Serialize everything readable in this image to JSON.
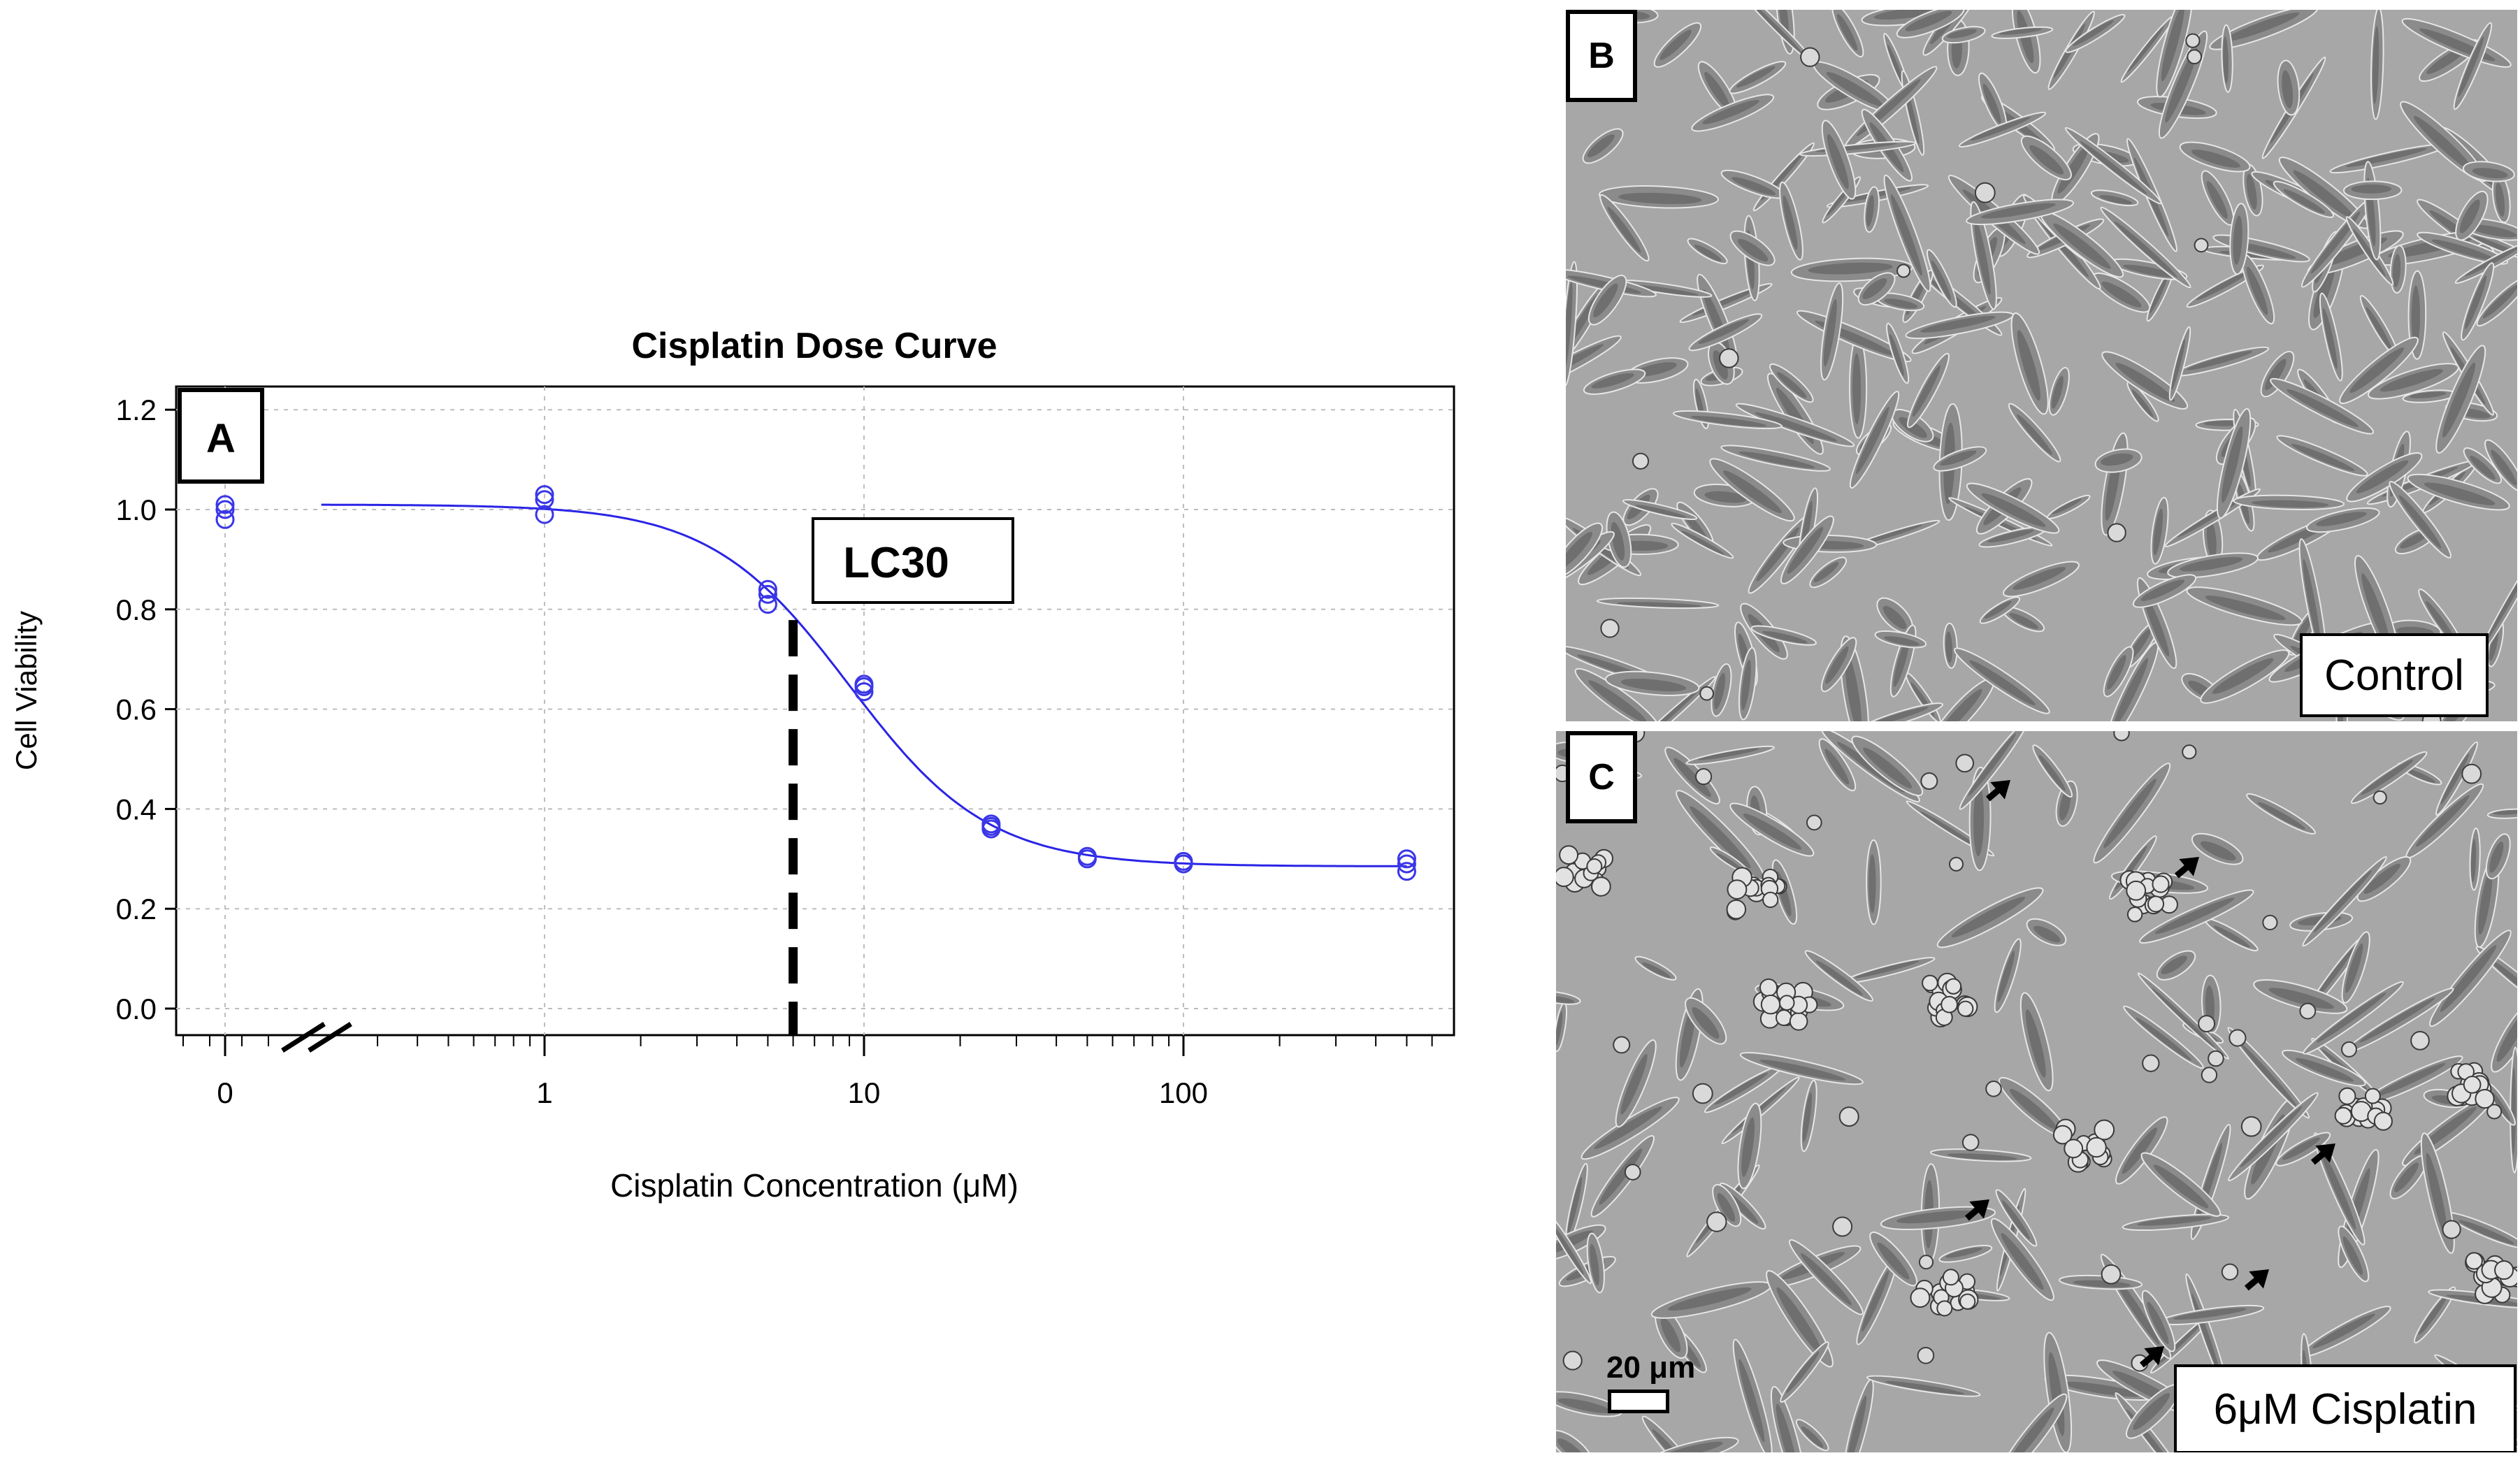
{
  "panel_a": {
    "letter": "A",
    "annotation": "LC30"
  },
  "chart_data": {
    "type": "scatter",
    "title": "Cisplatin Dose Curve",
    "xlabel": "Cisplatin Concentration (μM)",
    "ylabel": "Cell Viability",
    "x_scale": "log (with axis break before 1)",
    "x_tick_labels": [
      "0",
      "1",
      "10",
      "100"
    ],
    "y_ticks": [
      0.0,
      0.2,
      0.4,
      0.6,
      0.8,
      1.0,
      1.2
    ],
    "y_tick_labels": [
      "0.0",
      "0.2",
      "0.4",
      "0.6",
      "0.8",
      "1.0",
      "1.2"
    ],
    "ylim": [
      -0.04,
      1.24
    ],
    "grid": true,
    "series": [
      {
        "points": [
          {
            "x": 0,
            "y": 0.98
          },
          {
            "x": 0,
            "y": 1.0
          },
          {
            "x": 0,
            "y": 1.01
          },
          {
            "x": 1,
            "y": 0.99
          },
          {
            "x": 1,
            "y": 1.02
          },
          {
            "x": 1,
            "y": 1.03
          },
          {
            "x": 5,
            "y": 0.81
          },
          {
            "x": 5,
            "y": 0.83
          },
          {
            "x": 5,
            "y": 0.84
          },
          {
            "x": 10,
            "y": 0.635
          },
          {
            "x": 10,
            "y": 0.645
          },
          {
            "x": 10,
            "y": 0.65
          },
          {
            "x": 25,
            "y": 0.36
          },
          {
            "x": 25,
            "y": 0.365
          },
          {
            "x": 25,
            "y": 0.37
          },
          {
            "x": 50,
            "y": 0.3
          },
          {
            "x": 50,
            "y": 0.305
          },
          {
            "x": 100,
            "y": 0.29
          },
          {
            "x": 100,
            "y": 0.295
          },
          {
            "x": 500,
            "y": 0.275
          },
          {
            "x": 500,
            "y": 0.29
          },
          {
            "x": 500,
            "y": 0.3
          }
        ],
        "color": "#3a36e8"
      }
    ],
    "fit_curve": {
      "top": 1.01,
      "bottom": 0.285,
      "ec50": 9.0,
      "hill": 2.0,
      "x_range": [
        0.2,
        500
      ],
      "color": "#2a24e6"
    },
    "lc30_x": 6
  },
  "panel_b": {
    "letter": "B",
    "caption": "Control"
  },
  "panel_c": {
    "letter": "C",
    "caption": "6μM Cisplatin",
    "scale_bar": "20 μm"
  }
}
